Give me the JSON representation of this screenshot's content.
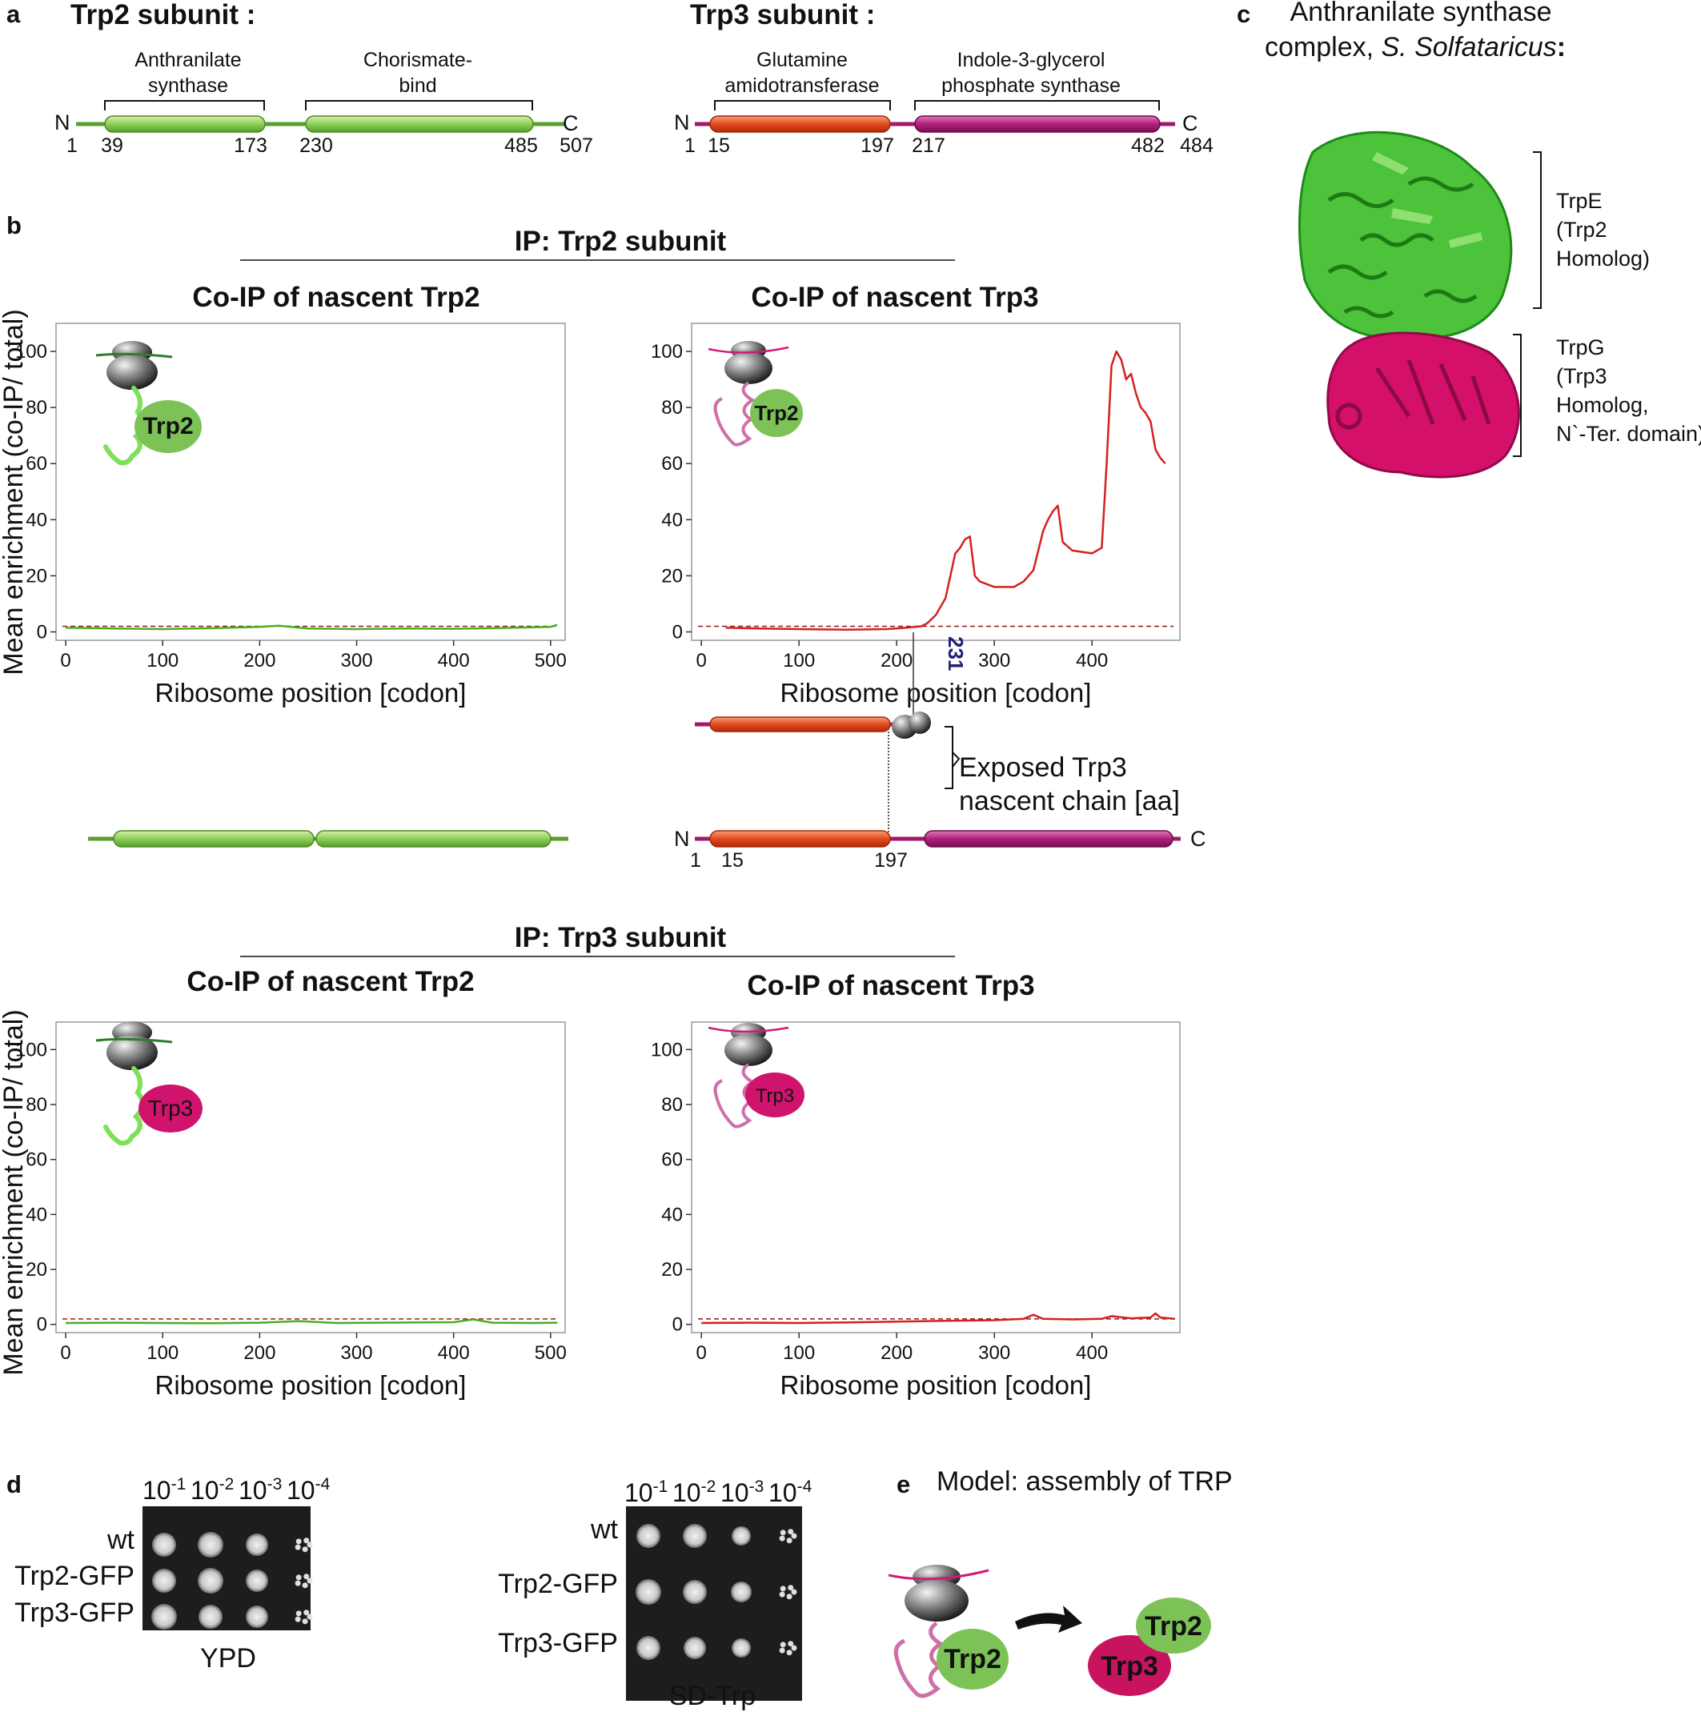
{
  "panel_a": {
    "letter": "a",
    "trp2": {
      "title": "Trp2 subunit :",
      "domain1": [
        "Anthranilate",
        "synthase"
      ],
      "domain2": [
        "Chorismate-",
        "bind"
      ],
      "n_label": "N",
      "c_label": "C",
      "positions": [
        "1",
        "39",
        "173",
        "230",
        "485",
        "507"
      ]
    },
    "trp3": {
      "title": "Trp3 subunit :",
      "domain1": [
        "Glutamine",
        "amidotransferase"
      ],
      "domain2": [
        "Indole-3-glycerol",
        "phosphate synthase"
      ],
      "n_label": "N",
      "c_label": "C",
      "positions": [
        "1",
        "15",
        "197",
        "217",
        "482",
        "484"
      ]
    }
  },
  "panel_b": {
    "letter": "b",
    "ip_trp2_title": "IP: Trp2 subunit",
    "ip_trp3_title": "IP: Trp3 subunit",
    "coip_trp2": "Co-IP of nascent Trp2",
    "coip_trp3": "Co-IP of nascent Trp3",
    "ylabel": "Mean enrichment (co-IP/ total)",
    "xlabel": "Ribosome position [codon]",
    "marker_231": "231",
    "exposed_label": [
      "Exposed Trp3",
      "nascent chain [aa]"
    ],
    "lower_n": "N",
    "lower_c": "C",
    "lower_positions": [
      "1",
      "15",
      "197"
    ],
    "bubble_trp2": "Trp2",
    "bubble_trp3": "Trp3"
  },
  "panel_c": {
    "letter": "c",
    "title_line1": "Anthranilate synthase",
    "title_line2a": "complex, ",
    "title_line2b": "S. Solfataricus",
    "title_line2c": ":",
    "trpe": [
      "TrpE",
      "(Trp2",
      "Homolog)"
    ],
    "trpg": [
      "TrpG",
      "(Trp3",
      "Homolog,",
      "N`-Ter. domain)"
    ]
  },
  "panel_d": {
    "letter": "d",
    "dilutions_base": [
      "10",
      "10",
      "10",
      "10"
    ],
    "dilutions_exp": [
      "-1",
      "-2",
      "-3",
      "-4"
    ],
    "strains": [
      "wt",
      "Trp2-GFP",
      "Trp3-GFP"
    ],
    "plate1": "YPD",
    "plate2": "SD-Trp"
  },
  "panel_e": {
    "letter": "e",
    "title": "Model: assembly of TRP",
    "bubble_trp2": "Trp2",
    "bubble_trp3": "Trp3"
  },
  "chart_data": [
    {
      "type": "line",
      "title": "IP: Trp2 subunit — Co-IP of nascent Trp2",
      "xlabel": "Ribosome position [codon]",
      "ylabel": "Mean enrichment (co-IP/ total)",
      "xlim": [
        -10,
        515
      ],
      "ylim": [
        -3,
        110
      ],
      "xticks": [
        0,
        100,
        200,
        300,
        400,
        500
      ],
      "yticks": [
        0,
        20,
        40,
        60,
        80,
        100
      ],
      "threshold": 2,
      "color": "#4caf1e",
      "x": [
        0,
        50,
        100,
        150,
        200,
        220,
        250,
        300,
        350,
        400,
        450,
        500,
        507
      ],
      "y": [
        1.5,
        1.2,
        1.0,
        1.3,
        1.8,
        2.2,
        1.2,
        1.0,
        1.2,
        1.1,
        1.4,
        1.8,
        2.5
      ]
    },
    {
      "type": "line",
      "title": "IP: Trp2 subunit — Co-IP of nascent Trp3",
      "xlabel": "Ribosome position [codon]",
      "ylabel": "Mean enrichment (co-IP/ total)",
      "xlim": [
        -10,
        490
      ],
      "ylim": [
        -3,
        110
      ],
      "xticks": [
        0,
        100,
        200,
        300,
        400
      ],
      "yticks": [
        0,
        20,
        40,
        60,
        80,
        100
      ],
      "threshold": 2,
      "color": "#d42020",
      "annotation": {
        "x": 231,
        "label": "231"
      },
      "x": [
        25,
        60,
        100,
        150,
        190,
        210,
        225,
        231,
        240,
        250,
        255,
        260,
        265,
        270,
        275,
        280,
        285,
        300,
        320,
        330,
        340,
        350,
        355,
        360,
        365,
        370,
        380,
        400,
        410,
        415,
        420,
        425,
        430,
        435,
        440,
        445,
        450,
        455,
        460,
        465,
        470,
        475
      ],
      "y": [
        1.5,
        1.2,
        1.0,
        0.8,
        1.0,
        1.5,
        2.0,
        3.0,
        6,
        12,
        20,
        28,
        30,
        33,
        34,
        20,
        18,
        16,
        16,
        18,
        22,
        36,
        40,
        43,
        45,
        32,
        29,
        28,
        30,
        60,
        95,
        100,
        97,
        90,
        92,
        85,
        80,
        78,
        75,
        65,
        62,
        60
      ]
    },
    {
      "type": "line",
      "title": "IP: Trp3 subunit — Co-IP of nascent Trp2",
      "xlabel": "Ribosome position [codon]",
      "ylabel": "Mean enrichment (co-IP/ total)",
      "xlim": [
        -10,
        515
      ],
      "ylim": [
        -3,
        110
      ],
      "xticks": [
        0,
        100,
        200,
        300,
        400,
        500
      ],
      "yticks": [
        0,
        20,
        40,
        60,
        80,
        100
      ],
      "threshold": 2,
      "color": "#4caf1e",
      "x": [
        0,
        50,
        100,
        150,
        200,
        240,
        280,
        320,
        360,
        400,
        420,
        440,
        480,
        507
      ],
      "y": [
        0.5,
        0.6,
        0.5,
        0.4,
        0.6,
        1.2,
        0.5,
        0.6,
        0.7,
        0.8,
        1.8,
        0.6,
        0.5,
        0.6
      ]
    },
    {
      "type": "line",
      "title": "IP: Trp3 subunit — Co-IP of nascent Trp3",
      "xlabel": "Ribosome position [codon]",
      "ylabel": "Mean enrichment (co-IP/ total)",
      "xlim": [
        -10,
        490
      ],
      "ylim": [
        -3,
        110
      ],
      "xticks": [
        0,
        100,
        200,
        300,
        400
      ],
      "yticks": [
        0,
        20,
        40,
        60,
        80,
        100
      ],
      "threshold": 2,
      "color": "#d42020",
      "x": [
        0,
        50,
        100,
        150,
        200,
        250,
        300,
        330,
        340,
        350,
        380,
        410,
        420,
        440,
        460,
        465,
        470,
        485
      ],
      "y": [
        0.5,
        0.6,
        0.5,
        0.7,
        1.0,
        1.3,
        1.5,
        2.0,
        3.5,
        2.0,
        1.8,
        2.0,
        3.0,
        2.2,
        2.5,
        4.0,
        2.5,
        2.0
      ]
    }
  ]
}
